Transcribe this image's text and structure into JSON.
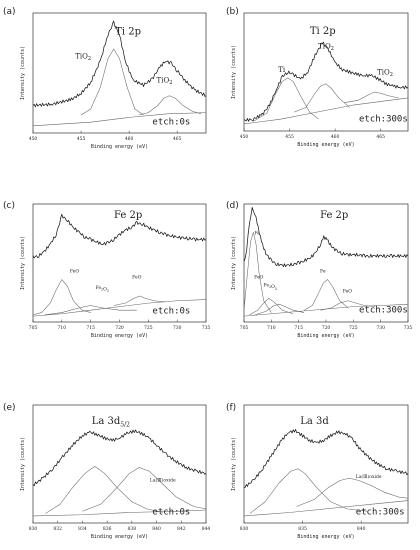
{
  "chart_data": [
    {
      "type": "line",
      "panel_label": "(a)",
      "title": "Ti 2p",
      "xlabel": "Binding energy (eV)",
      "ylabel": "Intensity (counts)",
      "xlim": [
        450,
        468
      ],
      "xticks": [
        450,
        455,
        460,
        465
      ],
      "etch": "etch:0s",
      "annotations": [
        "TiO2",
        "TiO2"
      ],
      "series": [
        {
          "role": "spectrum",
          "x": [
            450,
            452,
            454,
            455,
            456,
            457,
            457.8,
            458.4,
            459,
            459.6,
            460.4,
            461.5,
            462.4,
            463.2,
            463.8,
            464.4,
            465,
            465.8,
            466.8,
            468
          ],
          "y": [
            0.23,
            0.24,
            0.28,
            0.33,
            0.42,
            0.6,
            0.82,
            0.92,
            0.82,
            0.6,
            0.44,
            0.4,
            0.45,
            0.55,
            0.6,
            0.58,
            0.52,
            0.44,
            0.36,
            0.31
          ]
        },
        {
          "role": "peak",
          "x": [
            455,
            456,
            457,
            457.8,
            458.4,
            459,
            459.8,
            460.6,
            461.5
          ],
          "y": [
            0.15,
            0.2,
            0.38,
            0.62,
            0.7,
            0.62,
            0.38,
            0.2,
            0.15
          ]
        },
        {
          "role": "peak",
          "x": [
            461,
            462,
            463,
            463.6,
            464.2,
            464.8,
            465.6,
            466.6,
            467.5
          ],
          "y": [
            0.15,
            0.17,
            0.23,
            0.29,
            0.31,
            0.29,
            0.23,
            0.18,
            0.16
          ]
        },
        {
          "role": "background",
          "x": [
            450,
            456,
            460,
            464,
            468
          ],
          "y": [
            0.06,
            0.09,
            0.13,
            0.16,
            0.17
          ]
        }
      ]
    },
    {
      "type": "line",
      "panel_label": "(b)",
      "title": "Ti 2p",
      "xlabel": "Binding energy (eV)",
      "ylabel": "Intensity (counts)",
      "xlim": [
        450,
        468
      ],
      "xticks": [
        450,
        455,
        460,
        465
      ],
      "etch": "etch:300s",
      "annotations": [
        "Ti",
        "TiO2",
        "TiO2"
      ],
      "series": [
        {
          "role": "spectrum",
          "x": [
            450,
            451,
            452,
            452.8,
            453.6,
            454.2,
            454.8,
            455.4,
            456.2,
            457,
            457.8,
            458.6,
            459.2,
            460,
            460.8,
            461.6,
            462.4,
            463.2,
            464,
            464.8,
            465.6,
            466.4,
            467.2,
            468
          ],
          "y": [
            0.09,
            0.1,
            0.14,
            0.22,
            0.36,
            0.46,
            0.5,
            0.48,
            0.44,
            0.5,
            0.64,
            0.75,
            0.7,
            0.58,
            0.52,
            0.5,
            0.48,
            0.47,
            0.47,
            0.44,
            0.4,
            0.38,
            0.37,
            0.37
          ]
        },
        {
          "role": "peak",
          "x": [
            451,
            452.5,
            453.5,
            454.2,
            454.8,
            455.4,
            456.2,
            457.2,
            458.2
          ],
          "y": [
            0.08,
            0.15,
            0.32,
            0.42,
            0.45,
            0.42,
            0.3,
            0.16,
            0.1
          ]
        },
        {
          "role": "peak",
          "x": [
            455.5,
            456.8,
            457.8,
            458.4,
            459,
            459.6,
            460.4,
            461.6
          ],
          "y": [
            0.16,
            0.2,
            0.32,
            0.38,
            0.4,
            0.36,
            0.28,
            0.2
          ]
        },
        {
          "role": "peak",
          "x": [
            461,
            462.5,
            463.5,
            464.3,
            465,
            465.8,
            467
          ],
          "y": [
            0.24,
            0.26,
            0.3,
            0.33,
            0.32,
            0.3,
            0.28
          ]
        },
        {
          "role": "background",
          "x": [
            450,
            454,
            458,
            462,
            466,
            468
          ],
          "y": [
            0.06,
            0.1,
            0.16,
            0.22,
            0.26,
            0.28
          ]
        }
      ]
    },
    {
      "type": "line",
      "panel_label": "(c)",
      "title": "Fe 2p",
      "xlabel": "Binding energy (eV)",
      "ylabel": "Intensity (counts)",
      "xlim": [
        705,
        735
      ],
      "xticks": [
        705,
        710,
        715,
        720,
        725,
        730,
        735
      ],
      "etch": "etch:0s",
      "annotations": [
        "FeO",
        "Fe2O3",
        "FeO"
      ],
      "series": [
        {
          "role": "spectrum",
          "x": [
            705,
            706,
            707,
            708,
            709,
            710,
            711,
            712,
            713,
            714,
            715,
            716,
            717,
            718,
            719,
            720,
            721,
            722,
            723,
            724,
            725,
            726,
            727,
            728,
            729,
            730,
            731,
            732,
            733,
            734,
            735
          ],
          "y": [
            0.55,
            0.56,
            0.6,
            0.66,
            0.74,
            0.9,
            0.86,
            0.8,
            0.76,
            0.72,
            0.7,
            0.68,
            0.66,
            0.67,
            0.7,
            0.74,
            0.78,
            0.8,
            0.84,
            0.83,
            0.8,
            0.78,
            0.76,
            0.74,
            0.73,
            0.72,
            0.71,
            0.71,
            0.7,
            0.7,
            0.7
          ]
        },
        {
          "role": "peak",
          "x": [
            705,
            706.5,
            708,
            709,
            710,
            711,
            712,
            713.5,
            715
          ],
          "y": [
            0.06,
            0.08,
            0.16,
            0.27,
            0.36,
            0.3,
            0.18,
            0.1,
            0.08
          ]
        },
        {
          "role": "peak",
          "x": [
            707,
            710,
            713,
            715,
            717,
            720,
            723
          ],
          "y": [
            0.06,
            0.08,
            0.12,
            0.14,
            0.12,
            0.1,
            0.1
          ]
        },
        {
          "role": "peak",
          "x": [
            719,
            721,
            722.5,
            723.5,
            724.5,
            726,
            728
          ],
          "y": [
            0.14,
            0.16,
            0.2,
            0.22,
            0.2,
            0.18,
            0.17
          ]
        },
        {
          "role": "background",
          "x": [
            705,
            710,
            715,
            720,
            725,
            730,
            735
          ],
          "y": [
            0.05,
            0.07,
            0.1,
            0.13,
            0.16,
            0.18,
            0.19
          ]
        }
      ]
    },
    {
      "type": "line",
      "panel_label": "(d)",
      "title": "Fe 2p",
      "xlabel": "Binding energy (eV)",
      "ylabel": "Intensity (counts)",
      "xlim": [
        705,
        735
      ],
      "xticks": [
        705,
        710,
        715,
        720,
        725,
        730,
        735
      ],
      "etch": "etch:300s",
      "annotations": [
        "Fe",
        "FeO",
        "Fe2O3",
        "Fe",
        "FeO"
      ],
      "series": [
        {
          "role": "spectrum",
          "x": [
            705,
            705.5,
            706,
            706.5,
            707,
            707.6,
            708.2,
            709,
            710,
            711,
            712,
            713,
            714,
            715,
            716,
            717,
            718,
            719,
            719.6,
            720.2,
            721,
            722,
            723,
            724,
            725,
            726,
            727,
            728,
            729,
            730,
            731,
            732,
            733,
            734,
            735
          ],
          "y": [
            0.5,
            0.62,
            0.84,
            0.96,
            0.92,
            0.8,
            0.68,
            0.58,
            0.52,
            0.49,
            0.48,
            0.48,
            0.49,
            0.5,
            0.52,
            0.54,
            0.58,
            0.66,
            0.72,
            0.7,
            0.64,
            0.6,
            0.58,
            0.57,
            0.57,
            0.57,
            0.56,
            0.56,
            0.56,
            0.56,
            0.56,
            0.56,
            0.56,
            0.56,
            0.56
          ]
        },
        {
          "role": "peak",
          "x": [
            705,
            705.6,
            706.2,
            706.7,
            707.2,
            707.8,
            708.6,
            710
          ],
          "y": [
            0.1,
            0.4,
            0.68,
            0.76,
            0.66,
            0.4,
            0.18,
            0.08
          ]
        },
        {
          "role": "peak",
          "x": [
            706,
            707.5,
            708.6,
            709.5,
            710.5,
            712,
            714
          ],
          "y": [
            0.06,
            0.1,
            0.16,
            0.2,
            0.17,
            0.1,
            0.07
          ]
        },
        {
          "role": "peak",
          "x": [
            707,
            709,
            710.5,
            711.5,
            712.5,
            714,
            716
          ],
          "y": [
            0.06,
            0.09,
            0.14,
            0.15,
            0.13,
            0.1,
            0.08
          ]
        },
        {
          "role": "peak",
          "x": [
            716,
            717.5,
            718.6,
            719.5,
            720.3,
            721.2,
            722.5,
            724
          ],
          "y": [
            0.1,
            0.14,
            0.24,
            0.33,
            0.36,
            0.3,
            0.18,
            0.12
          ]
        },
        {
          "role": "peak",
          "x": [
            719,
            721,
            722.5,
            724,
            725.5,
            727,
            729
          ],
          "y": [
            0.1,
            0.12,
            0.16,
            0.18,
            0.16,
            0.14,
            0.13
          ]
        },
        {
          "role": "background",
          "x": [
            705,
            710,
            715,
            720,
            725,
            730,
            735
          ],
          "y": [
            0.05,
            0.07,
            0.09,
            0.11,
            0.13,
            0.14,
            0.15
          ]
        }
      ]
    },
    {
      "type": "line",
      "panel_label": "(e)",
      "title": "La 3d",
      "title_sub": "5/2",
      "xlabel": "Binding energy (eV)",
      "ylabel": "Intensity (counts)",
      "xlim": [
        830,
        844
      ],
      "xticks": [
        830,
        832,
        834,
        836,
        838,
        840,
        842,
        844
      ],
      "etch": "etch:0s",
      "annotations": [
        "La(Ⅲ)oxide"
      ],
      "series": [
        {
          "role": "spectrum",
          "x": [
            830,
            830.8,
            831.6,
            832.4,
            833.2,
            834,
            834.6,
            835.2,
            835.8,
            836.4,
            837,
            837.6,
            838.2,
            838.8,
            839.4,
            840,
            840.8,
            841.6,
            842.4,
            843.2,
            844
          ],
          "y": [
            0.32,
            0.38,
            0.46,
            0.56,
            0.66,
            0.74,
            0.77,
            0.75,
            0.72,
            0.7,
            0.72,
            0.76,
            0.78,
            0.76,
            0.72,
            0.66,
            0.58,
            0.52,
            0.47,
            0.44,
            0.42
          ]
        },
        {
          "role": "peak",
          "x": [
            831,
            832.2,
            833.2,
            834.2,
            835,
            835.8,
            836.8,
            838,
            839.2,
            840.5
          ],
          "y": [
            0.08,
            0.16,
            0.3,
            0.42,
            0.48,
            0.42,
            0.3,
            0.18,
            0.12,
            0.09
          ]
        },
        {
          "role": "peak",
          "x": [
            834,
            835.5,
            836.8,
            837.8,
            838.6,
            839.4,
            840.4,
            841.6,
            843,
            844
          ],
          "y": [
            0.1,
            0.16,
            0.3,
            0.42,
            0.47,
            0.44,
            0.34,
            0.22,
            0.14,
            0.12
          ]
        },
        {
          "role": "background",
          "x": [
            830,
            834,
            838,
            842,
            844
          ],
          "y": [
            0.06,
            0.07,
            0.09,
            0.1,
            0.11
          ]
        }
      ]
    },
    {
      "type": "line",
      "panel_label": "(f)",
      "title": "La 3d",
      "xlabel": "Binding energy (eV)",
      "ylabel": "Intensity (counts)",
      "xlim": [
        830,
        844
      ],
      "xticks": [
        830,
        835,
        840
      ],
      "etch": "etch:300s",
      "annotations": [
        "La(Ⅲ)oxide"
      ],
      "series": [
        {
          "role": "spectrum",
          "x": [
            830,
            830.8,
            831.6,
            832.4,
            833.2,
            833.8,
            834.4,
            835,
            835.6,
            836.2,
            836.8,
            837.4,
            838,
            838.6,
            839.2,
            839.8,
            840.6,
            841.4,
            842.2,
            843,
            844
          ],
          "y": [
            0.3,
            0.36,
            0.46,
            0.58,
            0.7,
            0.77,
            0.78,
            0.74,
            0.7,
            0.68,
            0.7,
            0.74,
            0.77,
            0.76,
            0.72,
            0.64,
            0.56,
            0.5,
            0.46,
            0.44,
            0.42
          ]
        },
        {
          "role": "peak",
          "x": [
            830.5,
            831.8,
            833,
            834,
            834.6,
            835.2,
            836.2,
            837.4,
            838.8,
            840.5
          ],
          "y": [
            0.08,
            0.18,
            0.34,
            0.44,
            0.46,
            0.42,
            0.3,
            0.18,
            0.12,
            0.1
          ]
        },
        {
          "role": "peak",
          "x": [
            834.5,
            836,
            837.2,
            838.2,
            839,
            839.8,
            840.8,
            842,
            843.2,
            844
          ],
          "y": [
            0.14,
            0.2,
            0.3,
            0.36,
            0.38,
            0.36,
            0.32,
            0.26,
            0.22,
            0.21
          ]
        },
        {
          "role": "background",
          "x": [
            830,
            834,
            838,
            842,
            844
          ],
          "y": [
            0.06,
            0.09,
            0.13,
            0.17,
            0.19
          ]
        }
      ]
    }
  ]
}
